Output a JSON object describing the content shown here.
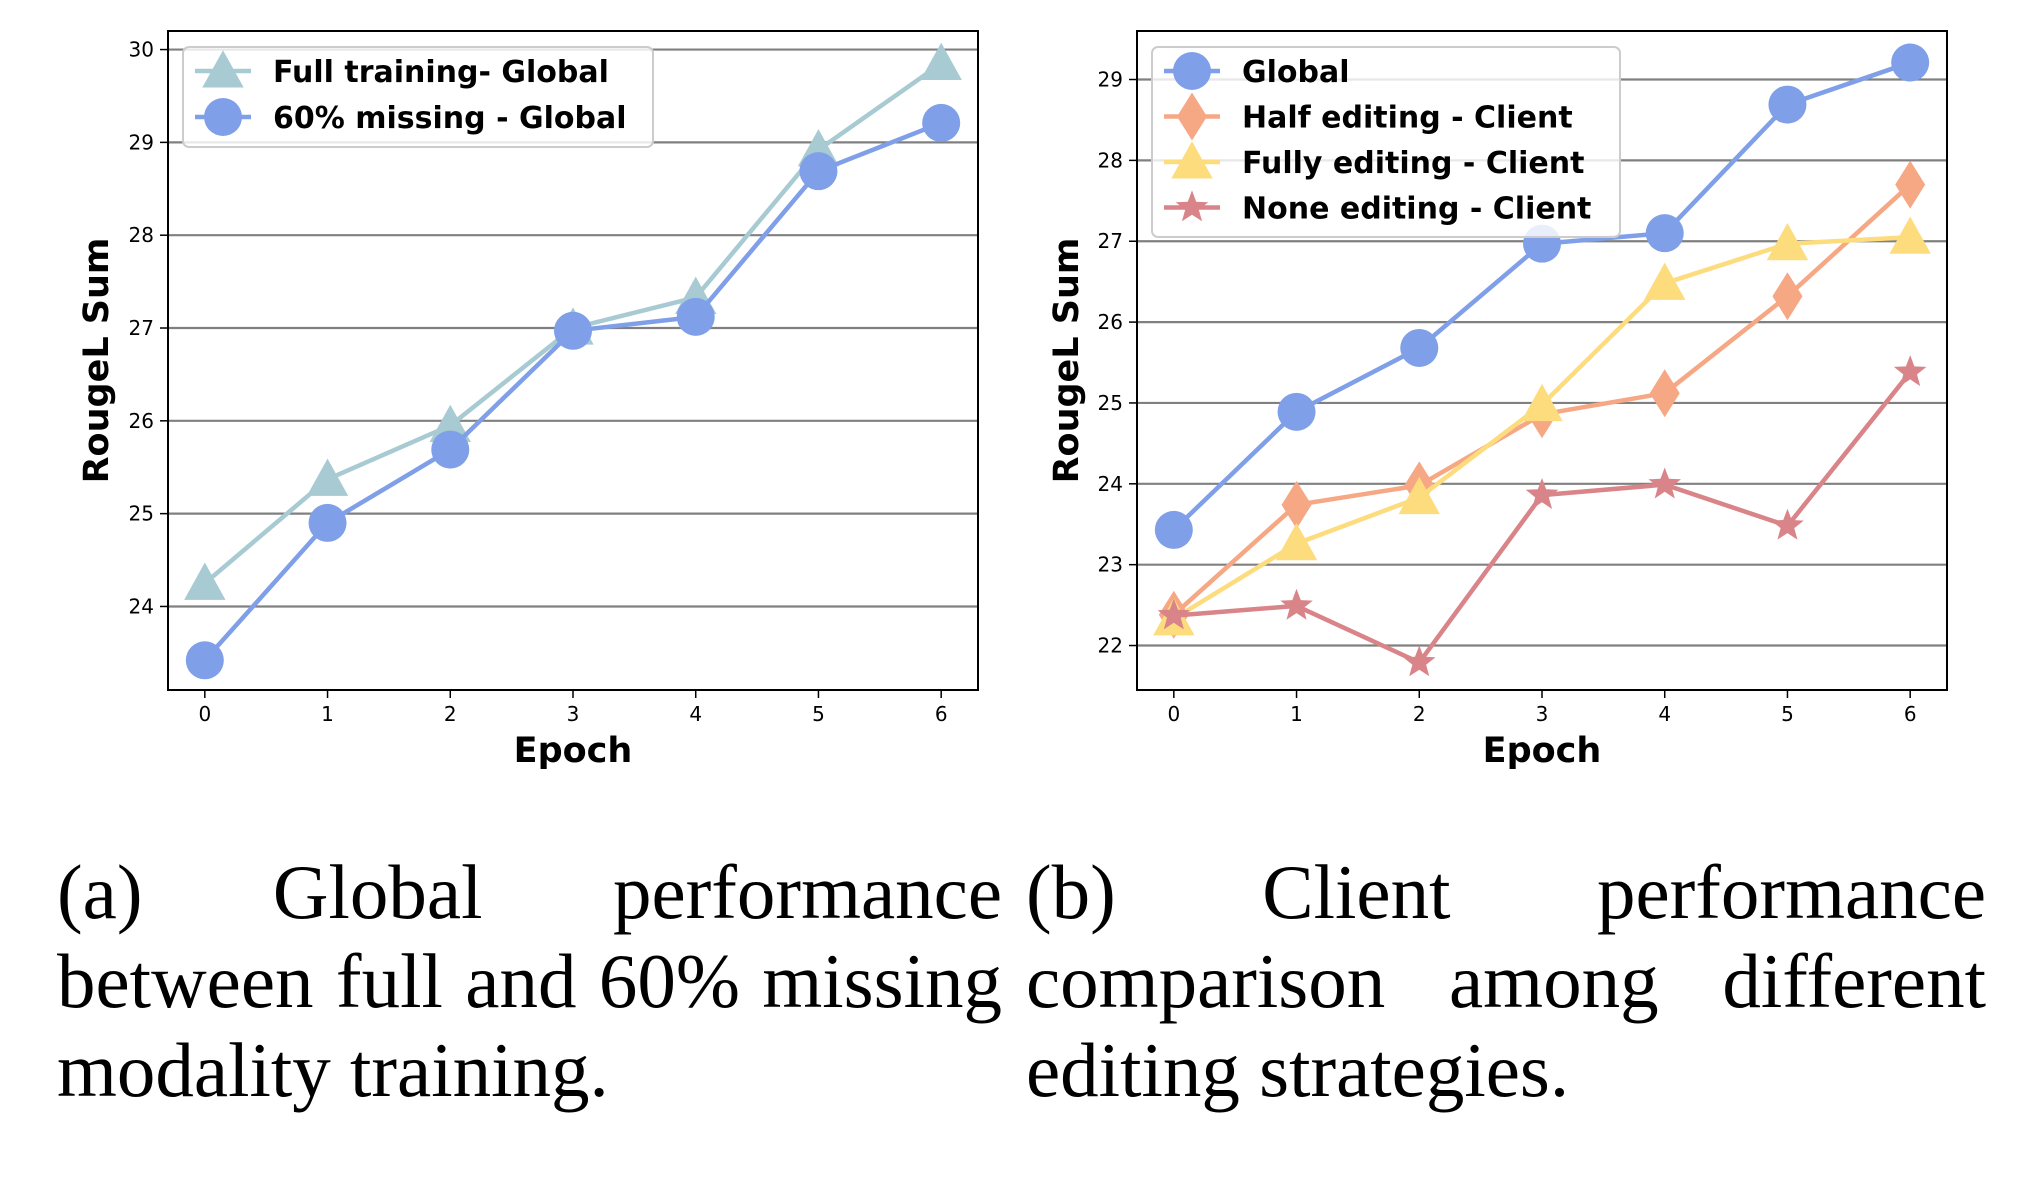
{
  "chart_data": [
    {
      "type": "line",
      "title": "",
      "xlabel": "Epoch",
      "ylabel": "RougeL Sum",
      "x": [
        0,
        1,
        2,
        3,
        4,
        5,
        6
      ],
      "xlim": [
        -0.3,
        6.3
      ],
      "ylim": [
        23.1,
        30.2
      ],
      "yticks": [
        24,
        25,
        26,
        27,
        28,
        29,
        30
      ],
      "grid": "horizontal",
      "legend_position": "top-left",
      "series": [
        {
          "name": "Full training- Global",
          "values": [
            24.25,
            25.37,
            25.95,
            27.0,
            27.33,
            28.92,
            29.85
          ],
          "color": "#a8cad2",
          "marker": "triangle"
        },
        {
          "name": "60% missing - Global",
          "values": [
            23.42,
            24.9,
            25.69,
            26.97,
            27.12,
            28.69,
            29.21
          ],
          "color": "#7f9fe8",
          "marker": "circle"
        }
      ]
    },
    {
      "type": "line",
      "title": "",
      "xlabel": "Epoch",
      "ylabel": "RougeL Sum",
      "x": [
        0,
        1,
        2,
        3,
        4,
        5,
        6
      ],
      "xlim": [
        -0.3,
        6.3
      ],
      "ylim": [
        21.45,
        29.6
      ],
      "yticks": [
        22,
        23,
        24,
        25,
        26,
        27,
        28,
        29
      ],
      "grid": "horizontal",
      "legend_position": "top-left",
      "series": [
        {
          "name": "Global",
          "values": [
            23.43,
            24.89,
            25.68,
            26.97,
            27.1,
            28.69,
            29.21
          ],
          "color": "#7f9fe8",
          "marker": "circle"
        },
        {
          "name": "Half editing - Client",
          "values": [
            22.38,
            23.74,
            23.98,
            24.86,
            25.12,
            26.32,
            27.7
          ],
          "color": "#f6a784",
          "marker": "diamond"
        },
        {
          "name": "Fully editing - Client",
          "values": [
            22.33,
            23.26,
            23.83,
            24.98,
            26.48,
            26.97,
            27.05
          ],
          "color": "#fddc7e",
          "marker": "triangle"
        },
        {
          "name": "None editing - Client",
          "values": [
            22.37,
            22.49,
            21.79,
            23.86,
            23.99,
            23.48,
            25.38
          ],
          "color": "#d98488",
          "marker": "star"
        }
      ]
    }
  ],
  "captions": {
    "a": "(a) Global performance between full and 60% missing modality training.",
    "b": "(b) Client performance comparison among different editing strategies."
  }
}
